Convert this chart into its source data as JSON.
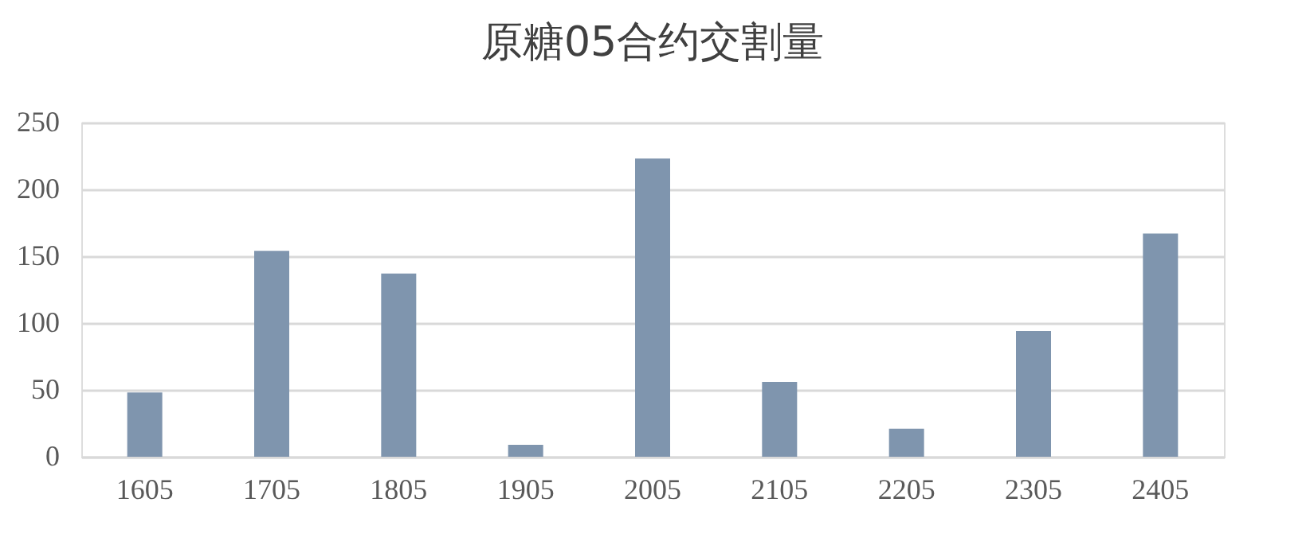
{
  "chart_data": {
    "type": "bar",
    "title": "原糖05合约交割量",
    "categories": [
      "1605",
      "1705",
      "1805",
      "1905",
      "2005",
      "2105",
      "2205",
      "2305",
      "2405"
    ],
    "values": [
      48,
      154,
      137,
      9,
      223,
      56,
      21,
      94,
      167
    ],
    "color": "#7f95ae",
    "ylim": [
      0,
      250
    ],
    "yticks": [
      0,
      50,
      100,
      150,
      200,
      250
    ],
    "grid": "y"
  }
}
